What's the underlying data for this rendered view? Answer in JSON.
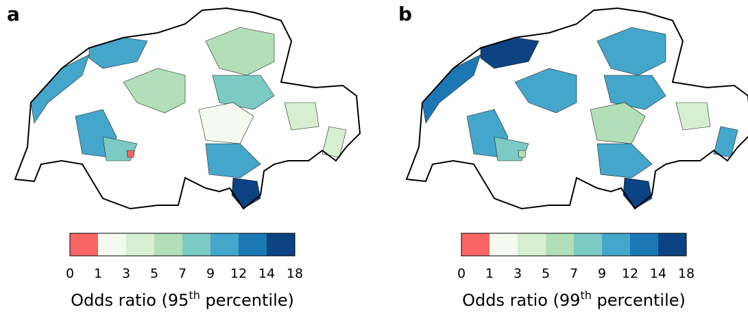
{
  "panels": [
    {
      "label": "a",
      "colorbar": {
        "ticks": [
          0,
          1,
          3,
          5,
          7,
          9,
          12,
          14,
          18
        ],
        "colors": [
          "#f96565",
          "#f4faef",
          "#d6efd1",
          "#b2dfb7",
          "#7bcac3",
          "#44a6cb",
          "#1c78b5",
          "#0b4383"
        ]
      },
      "xlabel": {
        "prefix": "Odds ratio (95",
        "sup": "th",
        "suffix": " percentile)"
      }
    },
    {
      "label": "b",
      "colorbar": {
        "ticks": [
          0,
          1,
          3,
          5,
          7,
          9,
          12,
          14,
          18
        ],
        "colors": [
          "#f96565",
          "#f4faef",
          "#d6efd1",
          "#b2dfb7",
          "#7bcac3",
          "#44a6cb",
          "#1c78b5",
          "#0b4383"
        ]
      },
      "xlabel": {
        "prefix": "Odds ratio (99",
        "sup": "th",
        "suffix": " percentile)"
      }
    }
  ]
}
